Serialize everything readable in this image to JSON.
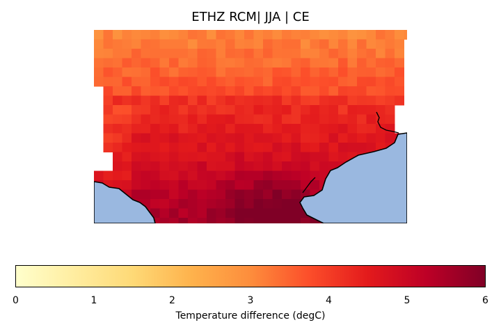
{
  "title": "ETHZ RCM| JJA | CE",
  "colorbar": {
    "label": "Temperature difference (degC)",
    "min": 0,
    "max": 6,
    "ticks": [
      "0",
      "1",
      "2",
      "3",
      "4",
      "5",
      "6"
    ],
    "colormap": "YlOrRd",
    "stops": [
      "#ffffcc",
      "#ffeda0",
      "#fed976",
      "#feb24c",
      "#fd8d3c",
      "#fc4e2a",
      "#e31a1c",
      "#bd0026",
      "#800026"
    ]
  },
  "map": {
    "sea_color": "#9ab8e0",
    "coastline_color": "#000000"
  }
}
